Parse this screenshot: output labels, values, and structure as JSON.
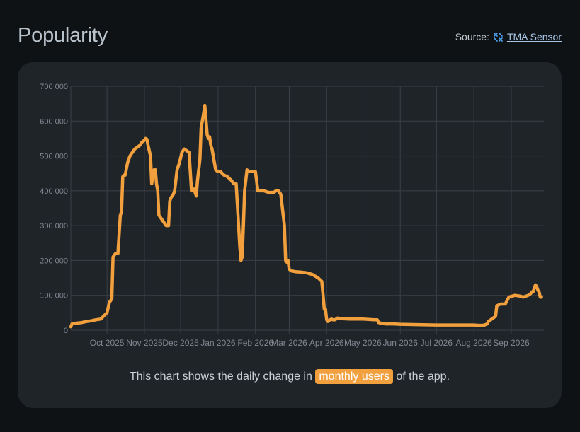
{
  "header": {
    "title": "Popularity",
    "source_label": "Source:",
    "source_link": "TMA Sensor"
  },
  "colors": {
    "line": "#f2a03d",
    "grid": "#3a4047",
    "tick": "#7f8891",
    "highlight": "#f2a03d"
  },
  "caption": {
    "before": "This chart shows the daily change in",
    "highlight": "monthly users",
    "after": "of the app."
  },
  "chart_data": {
    "type": "line",
    "grid": true,
    "ylim": [
      0,
      700000
    ],
    "y_ticks": [
      0,
      100000,
      200000,
      300000,
      400000,
      500000,
      600000,
      700000
    ],
    "y_tick_labels": [
      "0",
      "100 000",
      "200 000",
      "300 000",
      "400 000",
      "500 000",
      "600 000",
      "700 000"
    ],
    "xlim": [
      "2025-09-01",
      "2026-09-28"
    ],
    "x_ticks": [
      "2025-10-01",
      "2025-11-01",
      "2025-12-01",
      "2026-01-01",
      "2026-02-01",
      "2026-03-01",
      "2026-04-01",
      "2026-05-01",
      "2026-06-01",
      "2026-07-01",
      "2026-08-01",
      "2026-09-01"
    ],
    "x_tick_labels": [
      "Oct 2025",
      "Nov 2025",
      "Dec 2025",
      "Jan 2026",
      "Feb 2026",
      "Mar 2026",
      "Apr 2026",
      "May 2026",
      "Jun 2026",
      "Jul 2026",
      "Aug 2026",
      "Sep 2026"
    ],
    "series": [
      {
        "x": [
          "2025-09-01",
          "2025-09-02",
          "2025-09-05",
          "2025-09-10",
          "2025-09-14",
          "2025-09-18",
          "2025-09-22",
          "2025-09-26",
          "2025-09-28",
          "2025-10-01",
          "2025-10-03",
          "2025-10-05",
          "2025-10-06",
          "2025-10-08",
          "2025-10-10",
          "2025-10-12",
          "2025-10-13",
          "2025-10-14",
          "2025-10-15",
          "2025-10-16",
          "2025-10-18",
          "2025-10-20",
          "2025-10-22",
          "2025-10-24",
          "2025-10-26",
          "2025-10-28",
          "2025-10-30",
          "2025-11-01",
          "2025-11-02",
          "2025-11-03",
          "2025-11-04",
          "2025-11-06",
          "2025-11-07",
          "2025-11-08",
          "2025-11-09",
          "2025-11-10",
          "2025-11-11",
          "2025-11-12",
          "2025-11-13",
          "2025-11-15",
          "2025-11-17",
          "2025-11-19",
          "2025-11-21",
          "2025-11-22",
          "2025-11-23",
          "2025-11-25",
          "2025-11-26",
          "2025-11-28",
          "2025-11-30",
          "2025-12-02",
          "2025-12-04",
          "2025-12-06",
          "2025-12-08",
          "2025-12-10",
          "2025-12-12",
          "2025-12-13",
          "2025-12-14",
          "2025-12-15",
          "2025-12-17",
          "2025-12-18",
          "2025-12-19",
          "2025-12-20",
          "2025-12-21",
          "2025-12-23",
          "2025-12-24",
          "2025-12-25",
          "2025-12-26",
          "2025-12-27",
          "2025-12-28",
          "2025-12-29",
          "2025-12-30",
          "2026-01-01",
          "2026-01-03",
          "2026-01-06",
          "2026-01-09",
          "2026-01-12",
          "2026-01-14",
          "2026-01-16",
          "2026-01-18",
          "2026-01-19",
          "2026-01-20",
          "2026-01-21",
          "2026-01-22",
          "2026-01-23",
          "2026-01-24",
          "2026-01-25",
          "2026-01-27",
          "2026-01-28",
          "2026-02-01",
          "2026-02-03",
          "2026-02-05",
          "2026-02-08",
          "2026-02-12",
          "2026-02-16",
          "2026-02-18",
          "2026-02-20",
          "2026-02-22",
          "2026-02-24",
          "2026-02-25",
          "2026-02-26",
          "2026-02-27",
          "2026-02-28",
          "2026-03-01",
          "2026-03-03",
          "2026-03-06",
          "2026-03-10",
          "2026-03-15",
          "2026-03-20",
          "2026-03-25",
          "2026-03-28",
          "2026-03-29",
          "2026-03-30",
          "2026-03-31",
          "2026-04-01",
          "2026-04-02",
          "2026-04-03",
          "2026-04-05",
          "2026-04-06",
          "2026-04-08",
          "2026-04-10",
          "2026-04-14",
          "2026-04-20",
          "2026-04-26",
          "2026-05-01",
          "2026-05-06",
          "2026-05-10",
          "2026-05-13",
          "2026-05-14",
          "2026-05-16",
          "2026-05-20",
          "2026-05-26",
          "2026-06-01",
          "2026-06-15",
          "2026-07-01",
          "2026-07-15",
          "2026-08-01",
          "2026-08-05",
          "2026-08-08",
          "2026-08-10",
          "2026-08-12",
          "2026-08-13",
          "2026-08-15",
          "2026-08-19",
          "2026-08-20",
          "2026-08-23",
          "2026-08-27",
          "2026-08-30",
          "2026-09-02",
          "2026-09-04",
          "2026-09-08",
          "2026-09-11",
          "2026-09-15",
          "2026-09-17",
          "2026-09-18",
          "2026-09-19",
          "2026-09-20",
          "2026-09-21",
          "2026-09-22",
          "2026-09-23",
          "2026-09-24",
          "2026-09-25",
          "2026-09-26"
        ],
        "values": [
          10000,
          18000,
          20000,
          22000,
          25000,
          27000,
          30000,
          32000,
          40000,
          50000,
          80000,
          90000,
          210000,
          220000,
          220000,
          330000,
          340000,
          440000,
          445000,
          445000,
          480000,
          500000,
          510000,
          520000,
          525000,
          530000,
          540000,
          545000,
          550000,
          548000,
          530000,
          500000,
          420000,
          440000,
          460000,
          460000,
          420000,
          400000,
          330000,
          320000,
          310000,
          300000,
          300000,
          370000,
          380000,
          390000,
          400000,
          460000,
          480000,
          510000,
          520000,
          515000,
          510000,
          400000,
          405000,
          395000,
          385000,
          430000,
          490000,
          580000,
          600000,
          620000,
          645000,
          560000,
          550000,
          555000,
          530000,
          520000,
          500000,
          480000,
          460000,
          455000,
          455000,
          445000,
          440000,
          430000,
          420000,
          420000,
          300000,
          240000,
          200000,
          210000,
          300000,
          400000,
          430000,
          460000,
          455000,
          455000,
          455000,
          400000,
          400000,
          400000,
          395000,
          395000,
          400000,
          400000,
          390000,
          330000,
          300000,
          200000,
          195000,
          200000,
          175000,
          170000,
          168000,
          167000,
          165000,
          160000,
          150000,
          140000,
          100000,
          60000,
          60000,
          30000,
          25000,
          28000,
          32000,
          30000,
          30000,
          35000,
          33000,
          32000,
          32000,
          32000,
          31000,
          30000,
          30000,
          22000,
          20000,
          18000,
          18000,
          17000,
          16000,
          15000,
          15000,
          15000,
          14000,
          14000,
          15000,
          18000,
          25000,
          30000,
          40000,
          70000,
          75000,
          75000,
          95000,
          98000,
          100000,
          98000,
          95000,
          100000,
          105000,
          110000,
          110000,
          120000,
          130000,
          125000,
          115000,
          110000,
          95000,
          95000
        ]
      }
    ]
  }
}
